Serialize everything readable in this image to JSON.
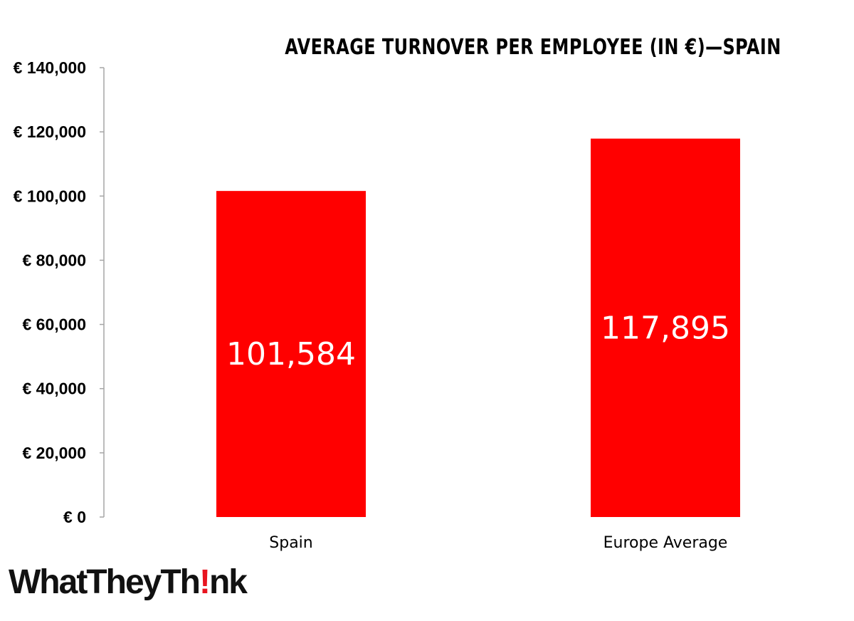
{
  "chart_data": {
    "type": "bar",
    "title": "AVERAGE TURNOVER PER EMPLOYEE (IN €)—SPAIN",
    "categories": [
      "Spain",
      "Europe Average"
    ],
    "values": [
      101584,
      117895
    ],
    "data_labels": [
      "101,584",
      "117,895"
    ],
    "ylim": [
      0,
      140000
    ],
    "yticks": [
      0,
      20000,
      40000,
      60000,
      80000,
      100000,
      120000,
      140000
    ],
    "ytick_labels": [
      "€ 0",
      "€ 20,000",
      "€ 40,000",
      "€ 60,000",
      "€ 80,000",
      "€ 100,000",
      "€ 120,000",
      "€ 140,000"
    ],
    "bar_color": "#ff0000",
    "grid": false,
    "legend": "none"
  },
  "logo": {
    "text_before": "WhatTheyTh",
    "mark": "!",
    "text_after": "nk",
    "mark_color": "#e8141f"
  }
}
